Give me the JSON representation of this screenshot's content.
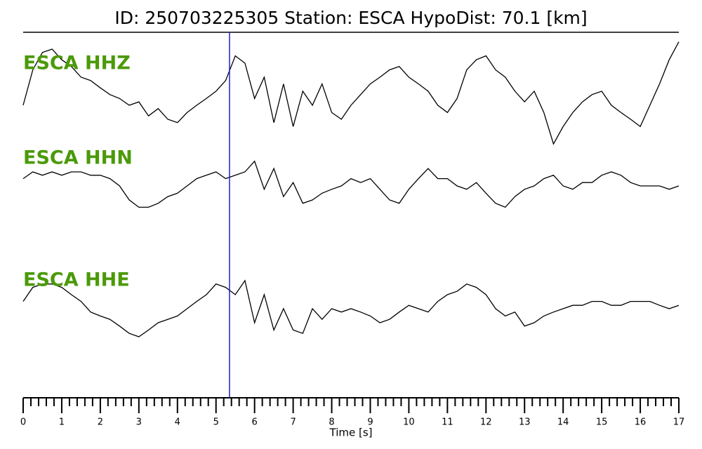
{
  "chart_data": {
    "type": "line",
    "title": "ID: 250703225305   Station: ESCA   HypoDist:    70.1 [km]",
    "xlabel": "Time [s]",
    "xlim": [
      0,
      17
    ],
    "xticks": [
      0,
      1,
      2,
      3,
      4,
      5,
      6,
      7,
      8,
      9,
      10,
      11,
      12,
      13,
      14,
      15,
      16,
      17
    ],
    "xminorticks": [
      0.2,
      0.4,
      0.6,
      0.8,
      1.2,
      1.4,
      1.6,
      1.8,
      2.2,
      2.4,
      2.6,
      2.8,
      3.2,
      3.4,
      3.6,
      3.8,
      4.2,
      4.4,
      4.6,
      4.8,
      5.2,
      5.4,
      5.6,
      5.8,
      6.2,
      6.4,
      6.6,
      6.8,
      7.2,
      7.4,
      7.6,
      7.8,
      8.2,
      8.4,
      8.6,
      8.8,
      9.2,
      9.4,
      9.6,
      9.8,
      10.2,
      10.4,
      10.6,
      10.8,
      11.2,
      11.4,
      11.6,
      11.8,
      12.2,
      12.4,
      12.6,
      12.8,
      13.2,
      13.4,
      13.6,
      13.8,
      14.2,
      14.4,
      14.6,
      14.8,
      15.2,
      15.4,
      15.6,
      15.8,
      16.2,
      16.4,
      16.6,
      16.8
    ],
    "pick": {
      "x": 5.35,
      "color": "#1f1fcc"
    },
    "label_color": "#4b9a0a",
    "x": [
      0,
      0.25,
      0.5,
      0.75,
      1,
      1.25,
      1.5,
      1.75,
      2,
      2.25,
      2.5,
      2.75,
      3,
      3.25,
      3.5,
      3.75,
      4,
      4.25,
      4.5,
      4.75,
      5,
      5.25,
      5.5,
      5.75,
      6,
      6.25,
      6.5,
      6.75,
      7,
      7.25,
      7.5,
      7.75,
      8,
      8.25,
      8.5,
      8.75,
      9,
      9.25,
      9.5,
      9.75,
      10,
      10.25,
      10.5,
      10.75,
      11,
      11.25,
      11.5,
      11.75,
      12,
      12.25,
      12.5,
      12.75,
      13,
      13.25,
      13.5,
      13.75,
      14,
      14.25,
      14.5,
      14.75,
      15,
      15.25,
      15.5,
      15.75,
      16,
      16.25,
      16.5,
      16.75,
      17
    ],
    "series": [
      {
        "name": "ESCA HHZ",
        "color": "#000000",
        "values": [
          -0.25,
          0.38,
          0.69,
          0.75,
          0.56,
          0.44,
          0.25,
          0.19,
          0.06,
          -0.06,
          -0.13,
          -0.25,
          -0.19,
          -0.44,
          -0.31,
          -0.5,
          -0.56,
          -0.38,
          -0.25,
          -0.13,
          0,
          0.19,
          0.63,
          0.5,
          -0.13,
          0.25,
          -0.56,
          0.13,
          -0.63,
          0,
          -0.25,
          0.13,
          -0.38,
          -0.5,
          -0.25,
          -0.06,
          0.13,
          0.25,
          0.38,
          0.44,
          0.25,
          0.13,
          0,
          -0.25,
          -0.38,
          -0.13,
          0.38,
          0.56,
          0.63,
          0.38,
          0.25,
          0,
          -0.19,
          0,
          -0.38,
          -0.94,
          -0.63,
          -0.38,
          -0.19,
          -0.06,
          0,
          -0.25,
          -0.38,
          -0.5,
          -0.63,
          -0.25,
          0.13,
          0.56,
          0.88
        ]
      },
      {
        "name": "ESCA HHN",
        "color": "#000000",
        "values": [
          0.13,
          0.25,
          0.19,
          0.25,
          0.19,
          0.25,
          0.25,
          0.19,
          0.19,
          0.13,
          0,
          -0.25,
          -0.38,
          -0.38,
          -0.31,
          -0.19,
          -0.13,
          0,
          0.13,
          0.19,
          0.25,
          0.13,
          0.19,
          0.25,
          0.44,
          -0.06,
          0.31,
          -0.19,
          0.06,
          -0.31,
          -0.25,
          -0.13,
          -0.06,
          0,
          0.13,
          0.06,
          0.13,
          -0.06,
          -0.25,
          -0.31,
          -0.06,
          0.13,
          0.31,
          0.13,
          0.13,
          0,
          -0.06,
          0.06,
          -0.13,
          -0.31,
          -0.38,
          -0.19,
          -0.06,
          0,
          0.13,
          0.19,
          0,
          -0.06,
          0.06,
          0.06,
          0.19,
          0.25,
          0.19,
          0.06,
          0,
          0,
          0,
          -0.06,
          0
        ]
      },
      {
        "name": "ESCA HHE",
        "color": "#000000",
        "values": [
          0.13,
          0.38,
          0.44,
          0.44,
          0.38,
          0.25,
          0.13,
          -0.06,
          -0.13,
          -0.19,
          -0.31,
          -0.44,
          -0.5,
          -0.38,
          -0.25,
          -0.19,
          -0.13,
          0,
          0.13,
          0.25,
          0.44,
          0.38,
          0.25,
          0.5,
          -0.25,
          0.25,
          -0.38,
          0,
          -0.38,
          -0.44,
          0,
          -0.19,
          0,
          -0.06,
          0,
          -0.06,
          -0.13,
          -0.25,
          -0.19,
          -0.06,
          0.06,
          0,
          -0.06,
          0.13,
          0.25,
          0.31,
          0.44,
          0.38,
          0.25,
          0,
          -0.13,
          -0.06,
          -0.31,
          -0.25,
          -0.13,
          -0.06,
          0,
          0.06,
          0.06,
          0.13,
          0.13,
          0.06,
          0.06,
          0.13,
          0.13,
          0.13,
          0.06,
          0,
          0.06
        ]
      }
    ]
  }
}
